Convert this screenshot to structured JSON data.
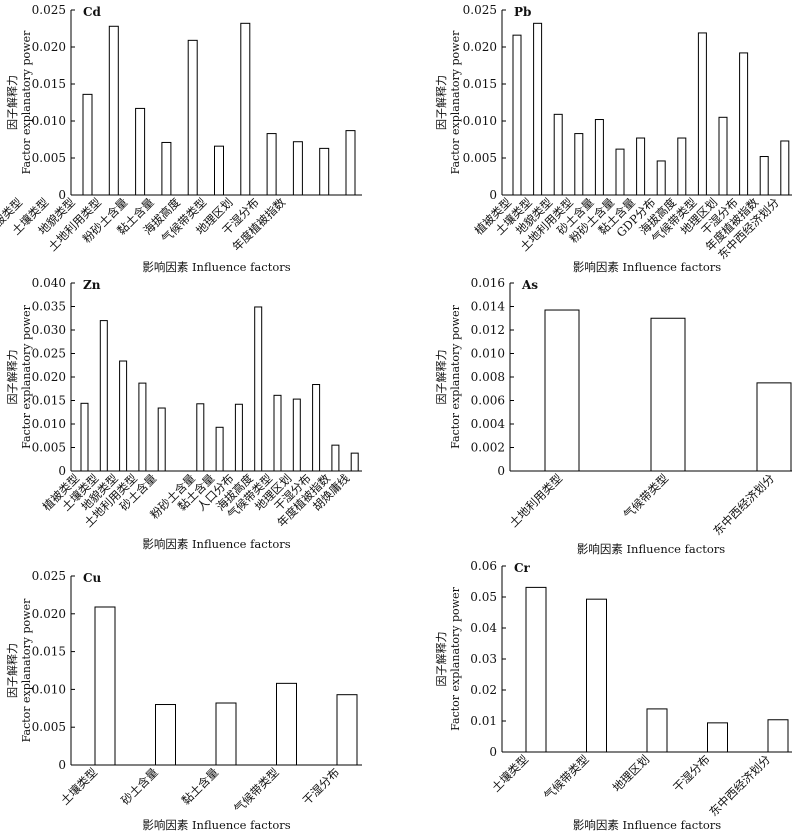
{
  "chart_data": [
    {
      "type": "bar",
      "title": "Cd",
      "ylabel_cn": "因子解释力",
      "ylabel_en": "Factor explanatory power",
      "xlabel": "影响因素 Influence factors",
      "ylim": [
        0,
        0.025
      ],
      "yticks": [
        "0",
        "0.005",
        "0.010",
        "0.015",
        "0.020",
        "0.025"
      ],
      "categories": [
        "植被类型",
        "土壤类型",
        "地貌类型",
        "土地利用类型",
        "粉砂土含量",
        "黏土含量",
        "海拔高度",
        "气候带类型",
        "地理区划",
        "干湿分布",
        "年度植被指数"
      ],
      "values": [
        0.0136,
        0.0228,
        0.0117,
        0.0071,
        0.0209,
        0.0066,
        0.0232,
        0.0083,
        0.0072,
        0.0063,
        0.0087
      ],
      "grid": false
    },
    {
      "type": "bar",
      "title": "Pb",
      "ylabel_cn": "因子解释力",
      "ylabel_en": "Factor explanatory power",
      "xlabel": "影响因素 Influence factors",
      "ylim": [
        0,
        0.025
      ],
      "yticks": [
        "0",
        "0.005",
        "0.010",
        "0.015",
        "0.020",
        "0.025"
      ],
      "categories": [
        "植被类型",
        "土壤类型",
        "地貌类型",
        "土地利用类型",
        "砂土含量",
        "粉砂土含量",
        "黏土含量",
        "GDP分布",
        "海拔高度",
        "气候带类型",
        "地理区划",
        "干湿分布",
        "年度植被指数",
        "东中西经济划分"
      ],
      "values": [
        0.0216,
        0.0232,
        0.0109,
        0.0083,
        0.0102,
        0.0062,
        0.0077,
        0.0046,
        0.0077,
        0.0219,
        0.0105,
        0.0192,
        0.0052,
        0.0073
      ],
      "grid": false
    },
    {
      "type": "bar",
      "title": "Zn",
      "ylabel_cn": "因子解释力",
      "ylabel_en": "Factor explanatory power",
      "xlabel": "影响因素 Influence factors",
      "ylim": [
        0,
        0.04
      ],
      "yticks": [
        "0",
        "0.005",
        "0.010",
        "0.015",
        "0.020",
        "0.025",
        "0.030",
        "0.035",
        "0.040"
      ],
      "categories": [
        "植被类型",
        "土壤类型",
        "地貌类型",
        "土地利用类型",
        "砂土含量",
        "",
        "粉砂土含量",
        "黏土含量",
        "人口分布",
        "海拔高度",
        "气候带类型",
        "地理区划",
        "干湿分布",
        "年度植被指数",
        "胡焕庸线"
      ],
      "values": [
        0.0144,
        0.032,
        0.0234,
        0.0187,
        0.0134,
        null,
        0.0143,
        0.0093,
        0.0142,
        0.0349,
        0.0161,
        0.0153,
        0.0184,
        0.0055,
        0.0038
      ],
      "grid": false
    },
    {
      "type": "bar",
      "title": "As",
      "ylabel_cn": "因子解释力",
      "ylabel_en": "Factor explanatory power",
      "xlabel": "影响因素 Influence factors",
      "ylim": [
        0,
        0.016
      ],
      "yticks": [
        "0",
        "0.002",
        "0.004",
        "0.006",
        "0.008",
        "0.010",
        "0.012",
        "0.014",
        "0.016"
      ],
      "categories": [
        "土地利用类型",
        "气候带类型",
        "东中西经济划分"
      ],
      "values": [
        0.0137,
        0.013,
        0.0075
      ],
      "grid": false
    },
    {
      "type": "bar",
      "title": "Cu",
      "ylabel_cn": "因子解释力",
      "ylabel_en": "Factor explanatory power",
      "xlabel": "影响因素 Influence factors",
      "ylim": [
        0,
        0.025
      ],
      "yticks": [
        "0",
        "0.005",
        "0.010",
        "0.015",
        "0.020",
        "0.025"
      ],
      "categories": [
        "土壤类型",
        "砂土含量",
        "黏土含量",
        "气候带类型",
        "干湿分布"
      ],
      "values": [
        0.0209,
        0.008,
        0.0082,
        0.0108,
        0.0093
      ],
      "grid": false
    },
    {
      "type": "bar",
      "title": "Cr",
      "ylabel_cn": "因子解释力",
      "ylabel_en": "Factor explanatory power",
      "xlabel": "影响因素 Influence factors",
      "ylim": [
        0,
        0.06
      ],
      "yticks": [
        "0",
        "0.01",
        "0.02",
        "0.03",
        "0.04",
        "0.05",
        "0.06"
      ],
      "categories": [
        "土壤类型",
        "气候带类型",
        "地理区划",
        "干湿分布",
        "东中西经济划分"
      ],
      "values": [
        0.0531,
        0.0493,
        0.0139,
        0.0094,
        0.0104
      ],
      "grid": false
    }
  ]
}
